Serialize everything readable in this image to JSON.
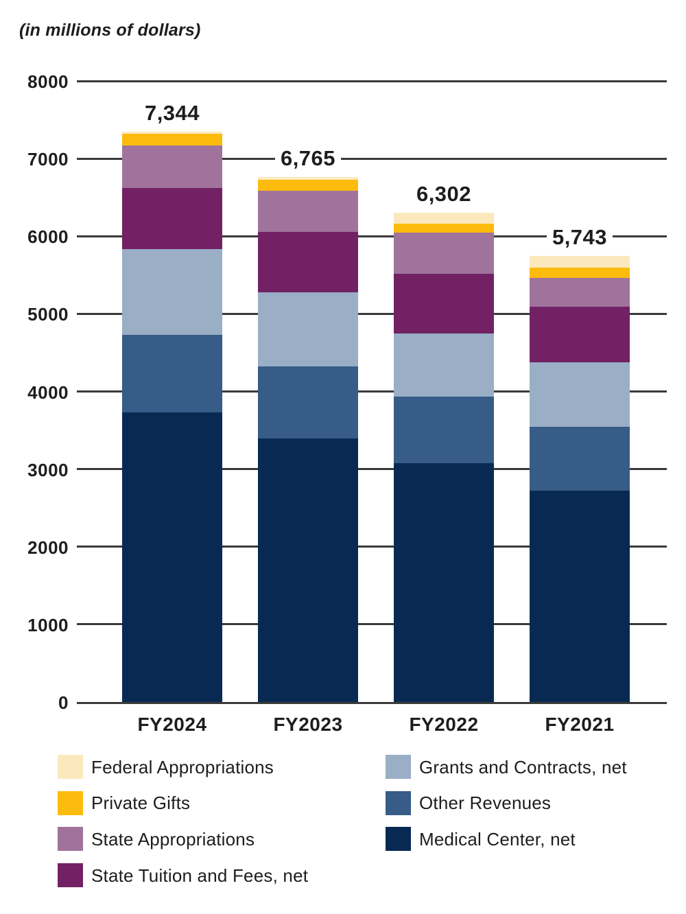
{
  "title": "(in millions of dollars)",
  "chart_data": {
    "type": "bar",
    "stacked": true,
    "title": "(in millions of dollars)",
    "xlabel": "",
    "ylabel": "",
    "ylim": [
      0,
      8000
    ],
    "yticks": [
      8000,
      7000,
      6000,
      5000,
      4000,
      3000,
      2000,
      1000,
      0
    ],
    "grid": true,
    "legend_position": "bottom",
    "categories": [
      "FY2024",
      "FY2023",
      "FY2022",
      "FY2021"
    ],
    "totals": [
      "7,344",
      "6,765",
      "6,302",
      "5,743"
    ],
    "total_values": [
      7344,
      6765,
      6302,
      5743
    ],
    "series": [
      {
        "name": "Medical Center, net",
        "color": "#082a52",
        "values": [
          3734,
          3398,
          3075,
          2723
        ]
      },
      {
        "name": "Other Revenues",
        "color": "#365c87",
        "values": [
          996,
          929,
          860,
          823
        ]
      },
      {
        "name": "Grants and Contracts, net",
        "color": "#9aaec6",
        "values": [
          1102,
          950,
          815,
          830
        ]
      },
      {
        "name": "State Tuition and Fees, net",
        "color": "#722165",
        "values": [
          792,
          774,
          765,
          715
        ]
      },
      {
        "name": "State Appropriations",
        "color": "#a0739c",
        "values": [
          549,
          539,
          530,
          369
        ]
      },
      {
        "name": "Private Gifts",
        "color": "#fdbb0d",
        "values": [
          146,
          135,
          112,
          133
        ]
      },
      {
        "name": "Federal Appropriations",
        "color": "#fbe9bd",
        "values": [
          25,
          40,
          145,
          150
        ]
      }
    ]
  },
  "legend": {
    "columns": [
      {
        "items": [
          "Federal Appropriations",
          "Private Gifts",
          "State Appropriations",
          "State Tuition and Fees, net"
        ]
      },
      {
        "items": [
          "Grants and Contracts, net",
          "Other Revenues",
          "Medical Center, net"
        ]
      }
    ]
  },
  "colors": {
    "gridline": "#3a3a3a",
    "text": "#1d1d1b",
    "background": "#ffffff"
  }
}
